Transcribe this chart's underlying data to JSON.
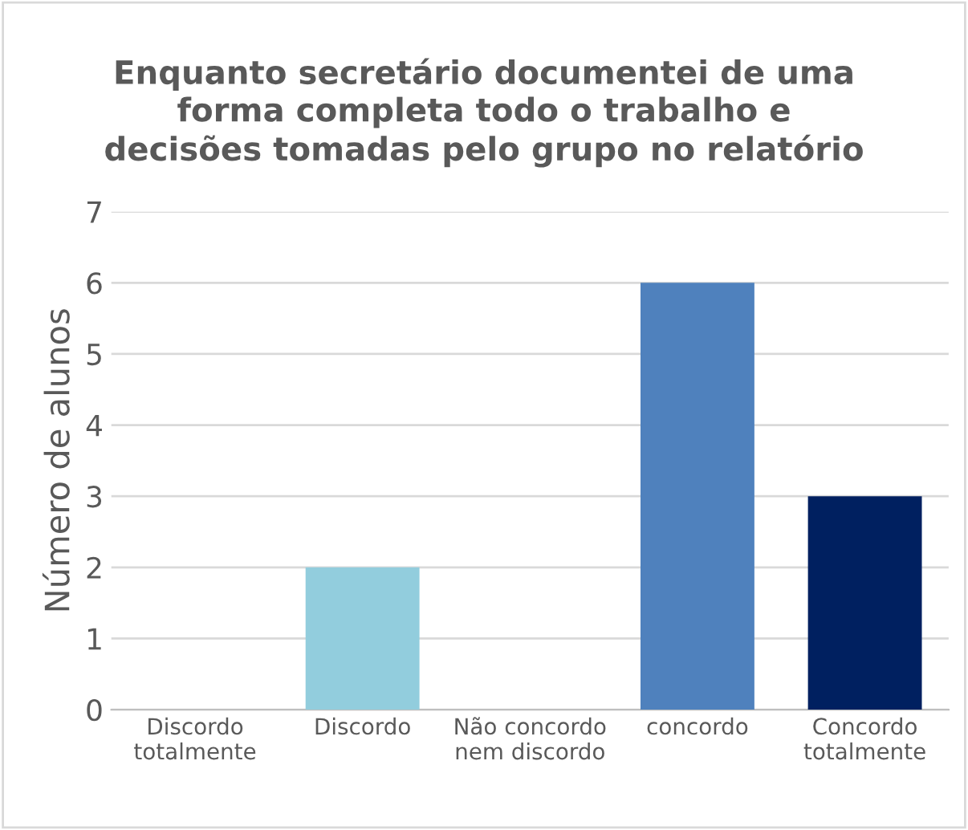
{
  "chart_data": {
    "type": "bar",
    "title": "Enquanto secretário documentei de uma\nforma completa todo o trabalho e\ndecisões tomadas pelo grupo no relatório",
    "ylabel": "Número de alunos",
    "categories": [
      "Discordo\ntotalmente",
      "Discordo",
      "Não concordo\nnem discordo",
      "concordo",
      "Concordo\ntotalmente"
    ],
    "values": [
      0,
      2,
      0,
      6,
      3
    ],
    "colors": [
      "#c6e4ee",
      "#92cddd",
      "#b7dde8",
      "#4f81bd",
      "#002060"
    ],
    "ylim": [
      0,
      7
    ],
    "yticks": [
      0,
      1,
      2,
      3,
      4,
      5,
      6,
      7
    ],
    "grid": "y",
    "legend": false
  }
}
